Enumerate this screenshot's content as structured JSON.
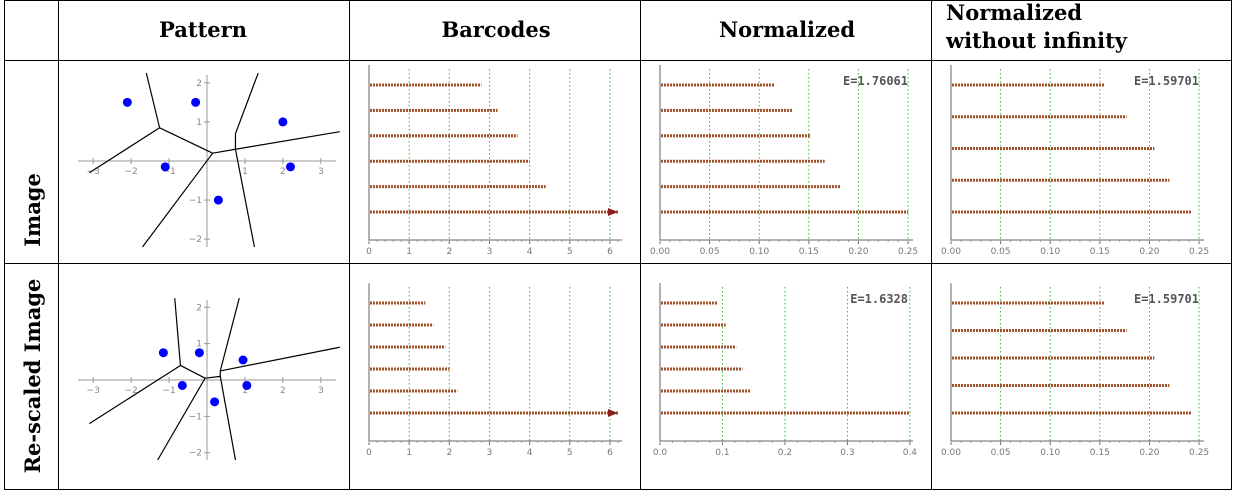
{
  "table": {
    "headers": [
      "Pattern",
      "Barcodes",
      "Normalized",
      "Normalized",
      "without infinity"
    ],
    "rows": [
      "Image",
      "Re-scaled Image"
    ]
  },
  "colors": {
    "bar": "#a0522d",
    "grid": "#33bb33",
    "point": "#0000ff",
    "arrow": "#8b2020"
  },
  "chart_data": [
    {
      "type": "scatter",
      "panel": "pattern",
      "row": "Image",
      "x": [
        -2.1,
        -0.3,
        -1.1,
        2.0,
        2.2,
        0.3
      ],
      "y": [
        1.5,
        1.5,
        -0.15,
        1.0,
        -0.15,
        -1.0
      ],
      "xlim": [
        -3.4,
        3.4
      ],
      "ylim": [
        -2.2,
        2.2
      ],
      "xticks": [
        -3,
        -2,
        -1,
        1,
        2,
        3
      ],
      "yticks": [
        2,
        1,
        -1,
        -2
      ],
      "xticklabels": [
        "−3",
        "−2",
        "−1",
        "1",
        "2",
        "3"
      ],
      "yticklabels": [
        "2",
        "1",
        "−1",
        "−2"
      ],
      "voronoi_edges": [
        [
          [
            0.15,
            0.2
          ],
          [
            0.75,
            0.3
          ]
        ],
        [
          [
            -1.25,
            0.85
          ],
          [
            0.15,
            0.2
          ]
        ],
        [
          [
            -1.25,
            0.85
          ],
          [
            -1.6,
            2.25
          ]
        ],
        [
          [
            -1.25,
            0.85
          ],
          [
            -3.1,
            -0.3
          ]
        ],
        [
          [
            0.15,
            0.2
          ],
          [
            -1.7,
            -2.2
          ]
        ],
        [
          [
            0.75,
            0.3
          ],
          [
            1.25,
            -2.2
          ]
        ],
        [
          [
            0.75,
            0.3
          ],
          [
            0.75,
            0.7
          ]
        ],
        [
          [
            0.75,
            0.7
          ],
          [
            1.35,
            2.25
          ]
        ],
        [
          [
            0.75,
            0.3
          ],
          [
            3.5,
            0.75
          ]
        ]
      ]
    },
    {
      "type": "bar",
      "panel": "barcodes",
      "row": "Image",
      "values": [
        2.8,
        3.2,
        3.7,
        4.0,
        4.4,
        6.2
      ],
      "infinite": [
        false,
        false,
        false,
        false,
        false,
        true
      ],
      "xlim": [
        0,
        6.3
      ],
      "grid": "dotted",
      "xticks": [
        0,
        1,
        2,
        3,
        4,
        5,
        6
      ],
      "xticklabels": [
        "0",
        "1",
        "2",
        "3",
        "4",
        "5",
        "6"
      ],
      "annotation": ""
    },
    {
      "type": "bar",
      "panel": "normalized",
      "row": "Image",
      "values": [
        0.115,
        0.133,
        0.152,
        0.166,
        0.182,
        0.25
      ],
      "infinite": [
        false,
        false,
        false,
        false,
        false,
        false
      ],
      "xlim": [
        0,
        0.255
      ],
      "grid": "dotted",
      "xticks": [
        0,
        0.05,
        0.1,
        0.15,
        0.2,
        0.25
      ],
      "xticklabels": [
        "0.00",
        "0.05",
        "0.10",
        "0.15",
        "0.20",
        "0.25"
      ],
      "annotation": "E=1.76061"
    },
    {
      "type": "bar",
      "panel": "normalized-without-infinity",
      "row": "Image",
      "values": [
        0.155,
        0.177,
        0.205,
        0.22,
        0.243
      ],
      "infinite": [
        false,
        false,
        false,
        false,
        false
      ],
      "xlim": [
        0,
        0.255
      ],
      "grid": "dotted",
      "xticks": [
        0,
        0.05,
        0.1,
        0.15,
        0.2,
        0.25
      ],
      "xticklabels": [
        "0.00",
        "0.05",
        "0.10",
        "0.15",
        "0.20",
        "0.25"
      ],
      "annotation": "E=1.59701"
    },
    {
      "type": "scatter",
      "panel": "pattern",
      "row": "Re-scaled Image",
      "x": [
        -1.15,
        -0.2,
        0.2,
        0.95,
        -0.65,
        1.05
      ],
      "y": [
        0.75,
        0.75,
        -0.6,
        0.55,
        -0.15,
        -0.15
      ],
      "xlim": [
        -3.4,
        3.4
      ],
      "ylim": [
        -2.2,
        2.2
      ],
      "xticks": [
        -3,
        -2,
        -1,
        1,
        2,
        3
      ],
      "yticks": [
        2,
        1,
        -1,
        -2
      ],
      "xticklabels": [
        "−3",
        "−2",
        "−1",
        "1",
        "2",
        "3"
      ],
      "yticklabels": [
        "2",
        "1",
        "−1",
        "−2"
      ],
      "voronoi_edges": [
        [
          [
            -0.7,
            0.4
          ],
          [
            -0.05,
            0.05
          ]
        ],
        [
          [
            -0.7,
            0.4
          ],
          [
            -0.85,
            2.25
          ]
        ],
        [
          [
            -0.7,
            0.4
          ],
          [
            -3.1,
            -1.2
          ]
        ],
        [
          [
            -0.05,
            0.05
          ],
          [
            0.35,
            0.1
          ]
        ],
        [
          [
            -0.05,
            0.05
          ],
          [
            -1.3,
            -2.2
          ]
        ],
        [
          [
            0.35,
            0.1
          ],
          [
            0.35,
            0.25
          ]
        ],
        [
          [
            0.35,
            0.25
          ],
          [
            0.85,
            2.25
          ]
        ],
        [
          [
            0.35,
            0.25
          ],
          [
            3.5,
            0.9
          ]
        ],
        [
          [
            0.35,
            0.1
          ],
          [
            0.75,
            -2.2
          ]
        ]
      ]
    },
    {
      "type": "bar",
      "panel": "barcodes",
      "row": "Re-scaled Image",
      "values": [
        1.4,
        1.6,
        1.9,
        2.0,
        2.2,
        6.2
      ],
      "infinite": [
        false,
        false,
        false,
        false,
        false,
        true
      ],
      "xlim": [
        0,
        6.3
      ],
      "grid": "dotted",
      "xticks": [
        0,
        1,
        2,
        3,
        4,
        5,
        6
      ],
      "xticklabels": [
        "0",
        "1",
        "2",
        "3",
        "4",
        "5",
        "6"
      ],
      "annotation": ""
    },
    {
      "type": "bar",
      "panel": "normalized",
      "row": "Re-scaled Image",
      "values": [
        0.092,
        0.105,
        0.122,
        0.132,
        0.145,
        0.4
      ],
      "infinite": [
        false,
        false,
        false,
        false,
        false,
        false
      ],
      "xlim": [
        0,
        0.405
      ],
      "grid": "dotted",
      "xticks": [
        0,
        0.1,
        0.2,
        0.3,
        0.4
      ],
      "xticklabels": [
        "0.0",
        "0.1",
        "0.2",
        "0.3",
        "0.4"
      ],
      "annotation": "E=1.6328"
    },
    {
      "type": "bar",
      "panel": "normalized-without-infinity",
      "row": "Re-scaled Image",
      "values": [
        0.155,
        0.177,
        0.205,
        0.22,
        0.243
      ],
      "infinite": [
        false,
        false,
        false,
        false,
        false
      ],
      "xlim": [
        0,
        0.255
      ],
      "grid": "dotted",
      "xticks": [
        0,
        0.05,
        0.1,
        0.15,
        0.2,
        0.25
      ],
      "xticklabels": [
        "0.00",
        "0.05",
        "0.10",
        "0.15",
        "0.20",
        "0.25"
      ],
      "annotation": "E=1.59701"
    }
  ]
}
